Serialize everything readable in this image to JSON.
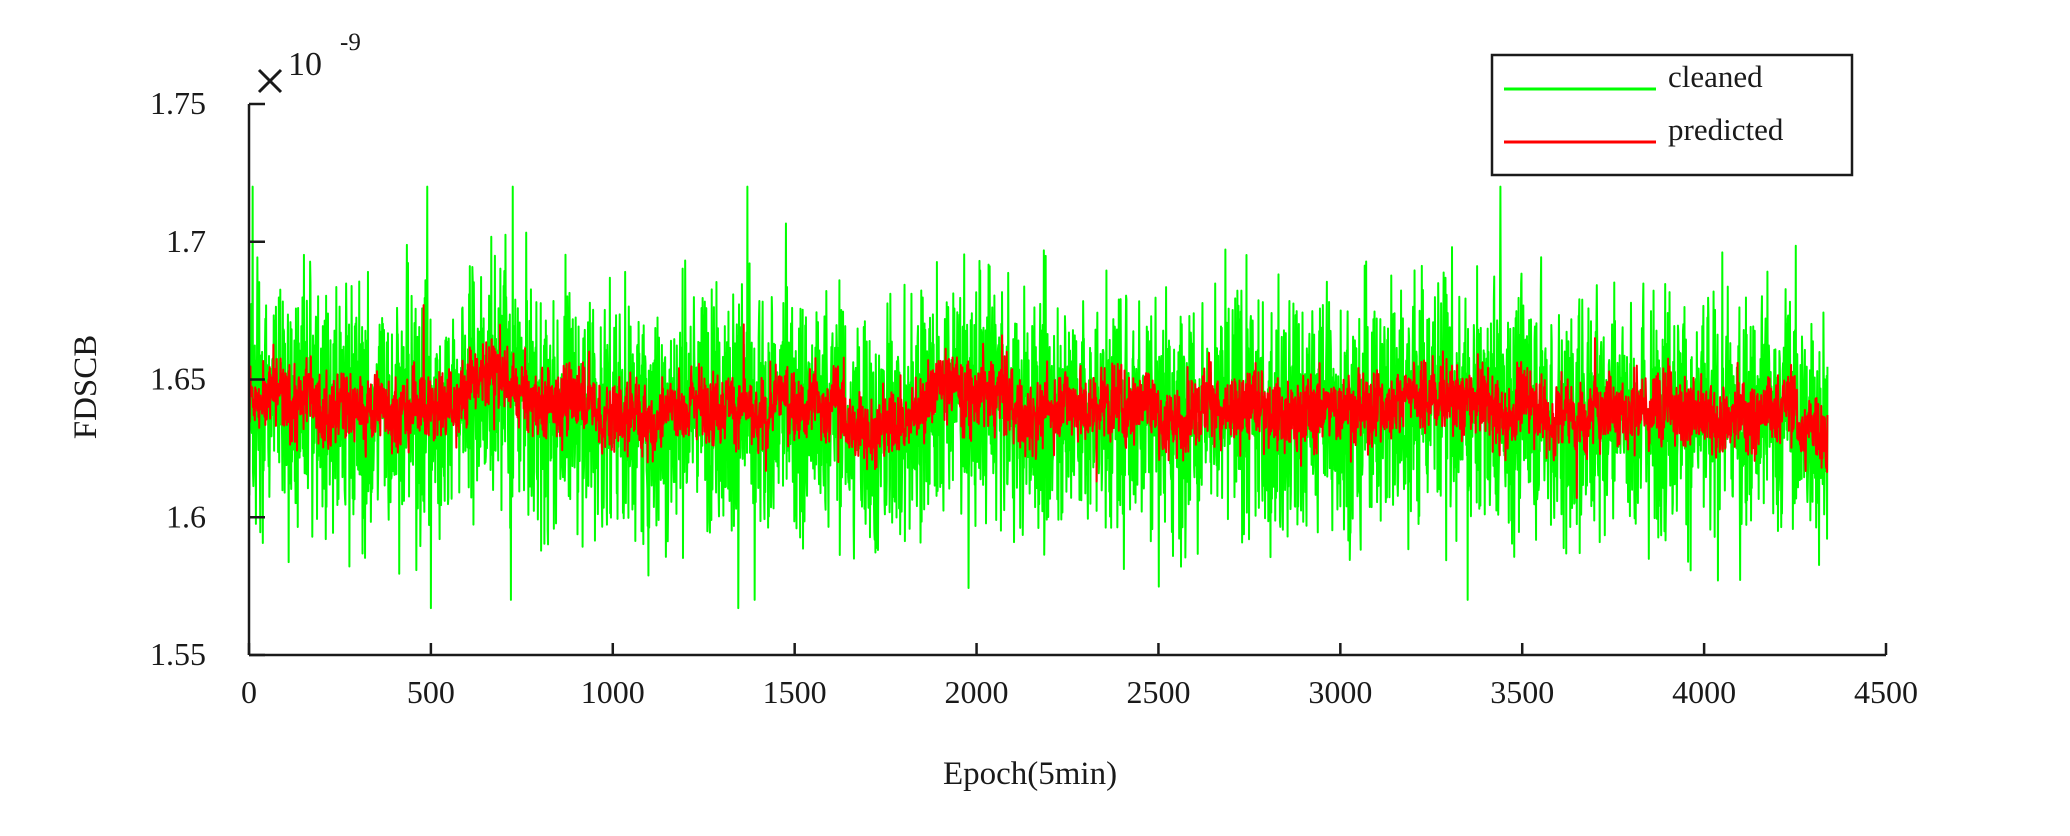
{
  "chart_data": {
    "type": "line",
    "xlabel": "Epoch(5min)",
    "ylabel": "FDSCB",
    "xlim": [
      0,
      4500
    ],
    "ylim": [
      1.55,
      1.75
    ],
    "y_scale_multiplier": "×10^-9",
    "exponent_base": "10",
    "exponent_power": "-9",
    "x_ticks": [
      "0",
      "500",
      "1000",
      "1500",
      "2000",
      "2500",
      "3000",
      "3500",
      "4000",
      "4500"
    ],
    "y_ticks": [
      "1.55",
      "1.6",
      "1.65",
      "1.7",
      "1.75"
    ],
    "grid": false,
    "legend_position": "top-right",
    "x_count": 4340,
    "series": [
      {
        "name": "cleaned",
        "color": "#00ff00",
        "mean": 1.64,
        "range": [
          1.567,
          1.721
        ],
        "notable_peaks": [
          [
            10,
            1.72
          ],
          [
            490,
            1.72
          ],
          [
            725,
            1.72
          ],
          [
            1370,
            1.72
          ],
          [
            3440,
            1.72
          ]
        ],
        "notable_troughs": [
          [
            500,
            1.567
          ],
          [
            720,
            1.57
          ],
          [
            1345,
            1.567
          ],
          [
            1390,
            1.57
          ],
          [
            3350,
            1.57
          ]
        ]
      },
      {
        "name": "predicted",
        "color": "#ff0000",
        "mean": 1.641,
        "range": [
          1.607,
          1.677
        ],
        "notable_peaks": [
          [
            480,
            1.677
          ],
          [
            1360,
            1.67
          ],
          [
            2330,
            1.675
          ],
          [
            3700,
            1.665
          ]
        ],
        "notable_troughs": [
          [
            3650,
            1.607
          ],
          [
            2330,
            1.613
          ],
          [
            1620,
            1.62
          ]
        ]
      }
    ]
  }
}
